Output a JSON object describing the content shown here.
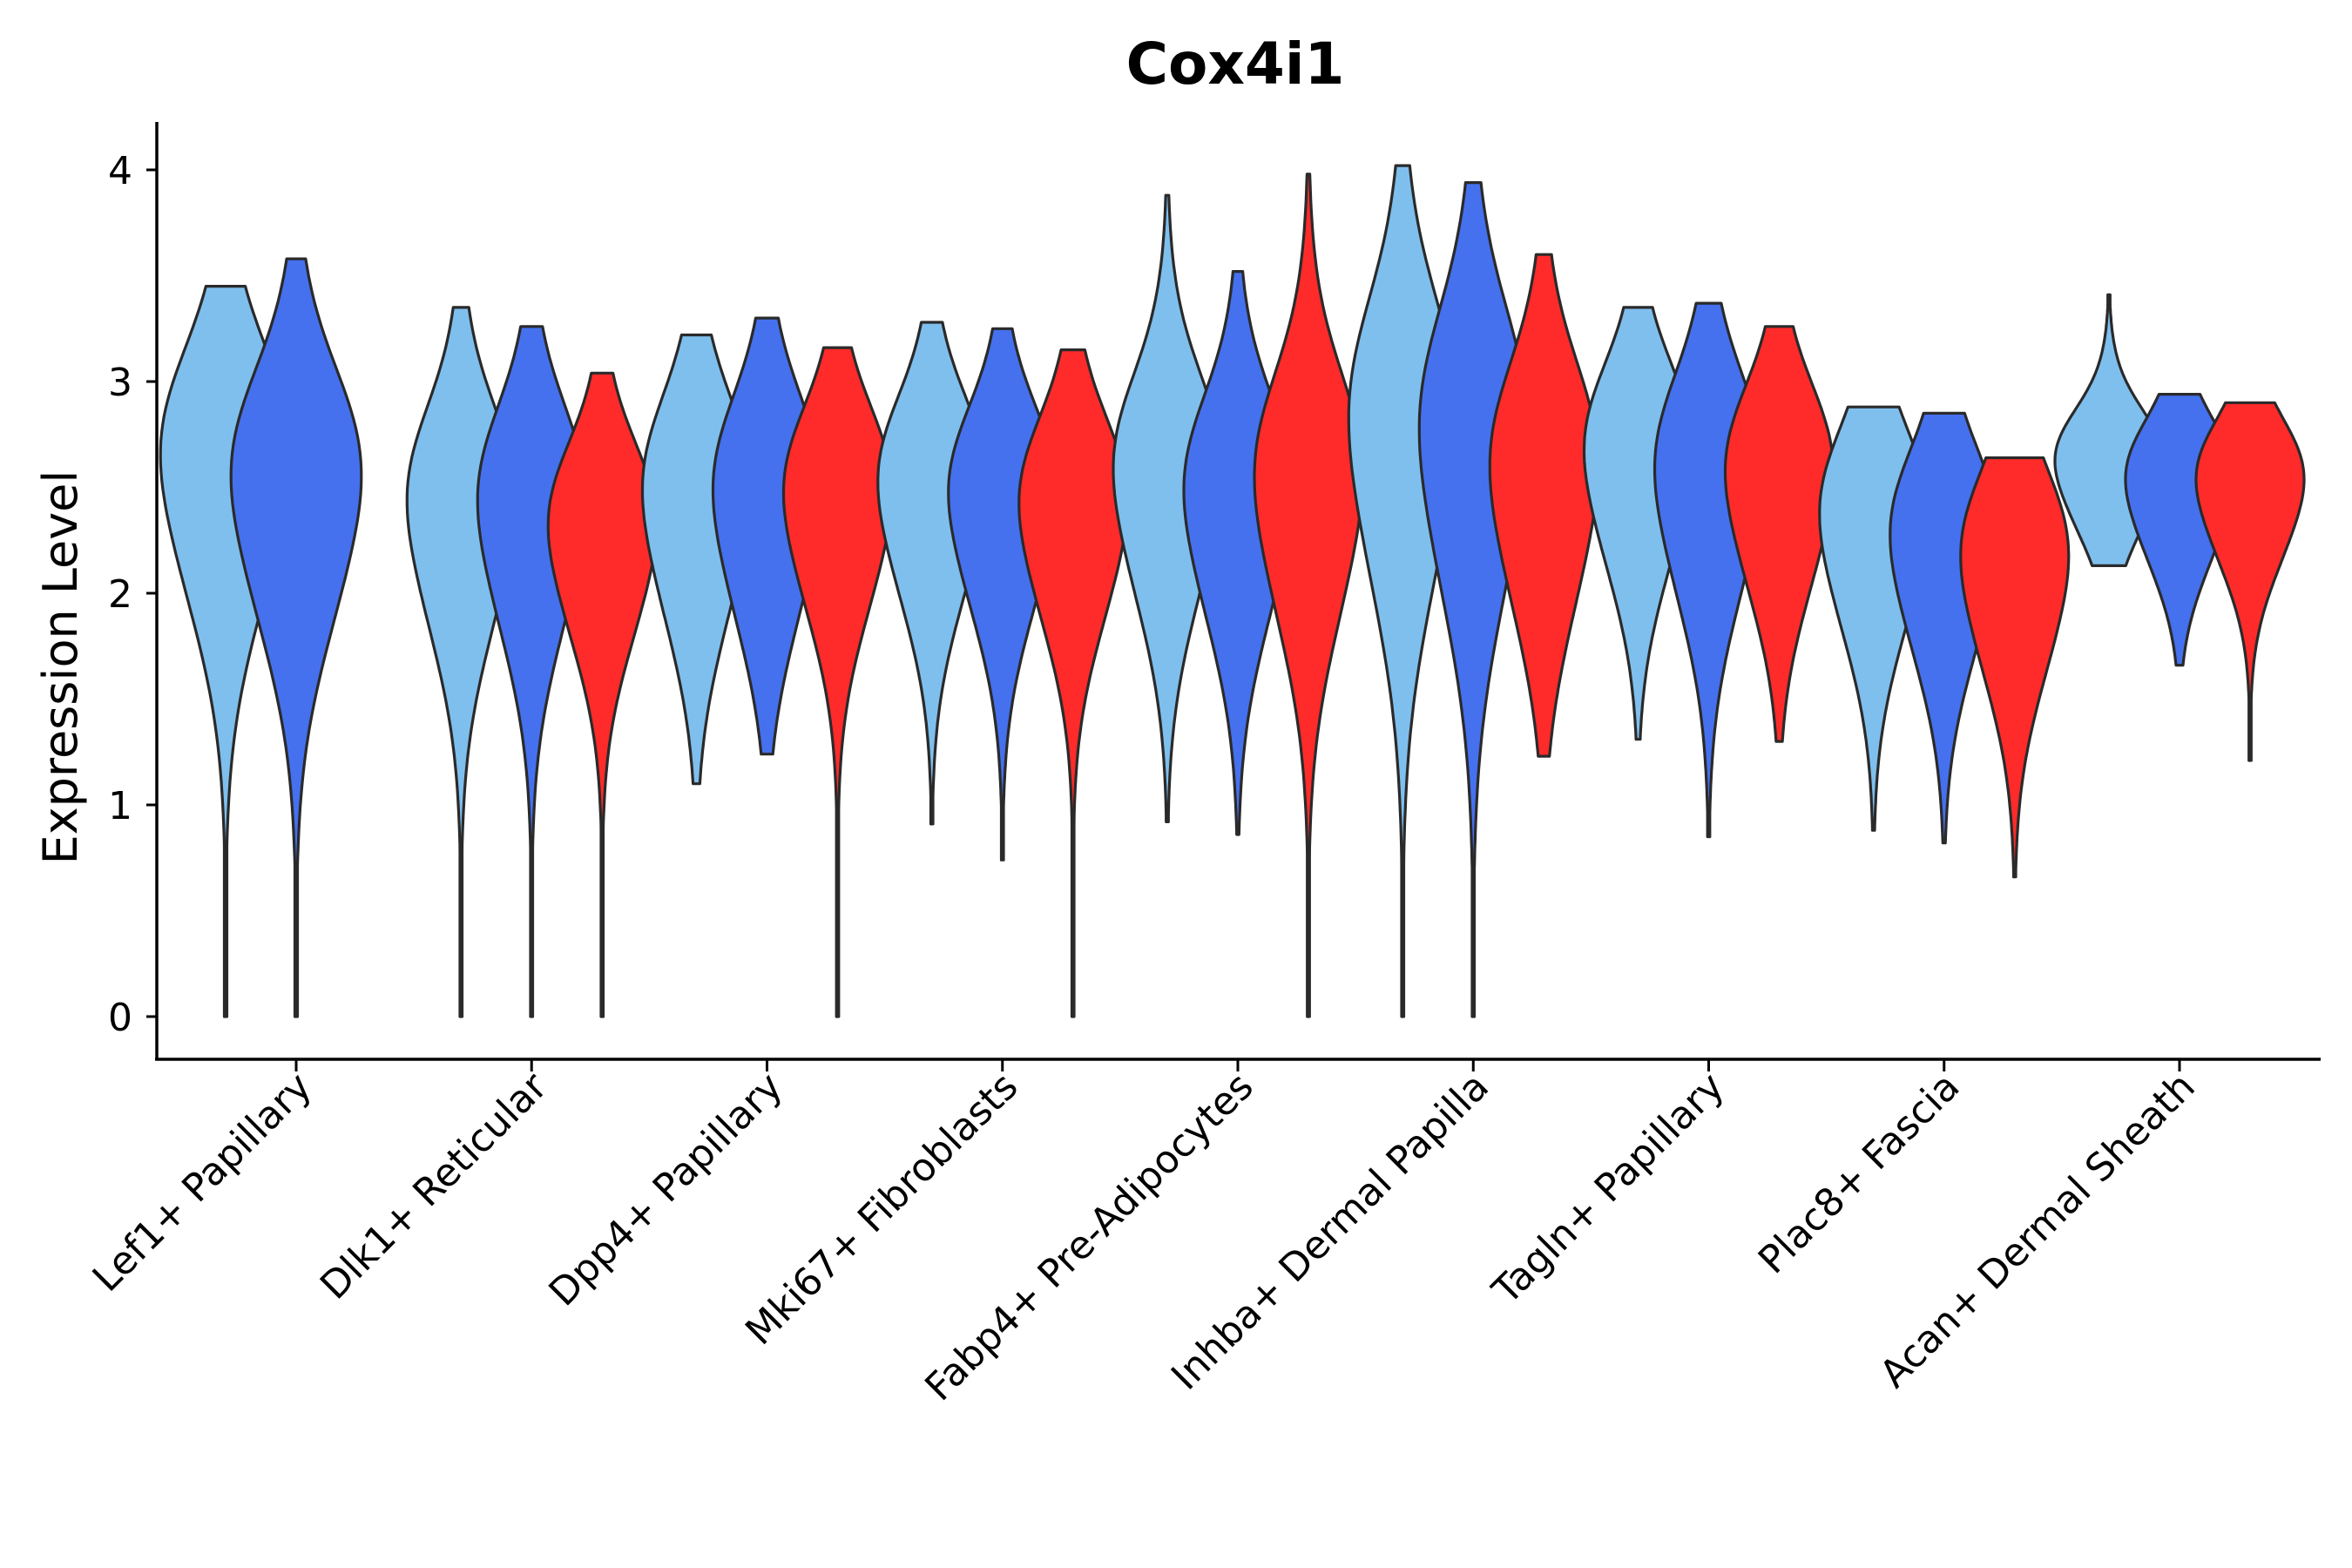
{
  "chart_data": {
    "type": "violin",
    "title": "Cox4i1",
    "xlabel": "",
    "ylabel": "Expression Level",
    "ylim": [
      -0.2,
      4.2
    ],
    "yticks": [
      0,
      1,
      2,
      3,
      4
    ],
    "grid": false,
    "legend": "none",
    "categories": [
      "Lef1+ Papillary",
      "Dlk1+ Reticular",
      "Dpp4+ Papillary",
      "Mki67+ Fibroblasts",
      "Fabp4+ Pre-Adipocytes",
      "Inhba+ Dermal Papilla",
      "Tagln+ Papillary",
      "Plac8+ Fascia",
      "Acan+ Dermal Sheath"
    ],
    "group_colors": [
      "#7fbfee",
      "#4571ef",
      "#ff2b2b"
    ],
    "violins": [
      {
        "category": 0,
        "group": 0,
        "min": 0.0,
        "max": 3.45,
        "mode": 2.5,
        "spread": 0.62,
        "width": 0.7
      },
      {
        "category": 0,
        "group": 1,
        "min": 0.0,
        "max": 3.58,
        "mode": 2.4,
        "spread": 0.62,
        "width": 0.7
      },
      {
        "category": 1,
        "group": 0,
        "min": 0.0,
        "max": 3.35,
        "mode": 2.3,
        "spread": 0.55,
        "width": 0.58
      },
      {
        "category": 1,
        "group": 1,
        "min": 0.0,
        "max": 3.26,
        "mode": 2.3,
        "spread": 0.55,
        "width": 0.58
      },
      {
        "category": 1,
        "group": 2,
        "min": 0.0,
        "max": 3.04,
        "mode": 2.2,
        "spread": 0.48,
        "width": 0.58
      },
      {
        "category": 2,
        "group": 0,
        "min": 1.1,
        "max": 3.22,
        "mode": 2.35,
        "spread": 0.55,
        "width": 0.58
      },
      {
        "category": 2,
        "group": 1,
        "min": 1.24,
        "max": 3.3,
        "mode": 2.35,
        "spread": 0.55,
        "width": 0.58
      },
      {
        "category": 2,
        "group": 2,
        "min": 0.0,
        "max": 3.16,
        "mode": 2.35,
        "spread": 0.5,
        "width": 0.58
      },
      {
        "category": 3,
        "group": 0,
        "min": 0.91,
        "max": 3.28,
        "mode": 2.4,
        "spread": 0.5,
        "width": 0.58
      },
      {
        "category": 3,
        "group": 1,
        "min": 0.74,
        "max": 3.25,
        "mode": 2.35,
        "spread": 0.5,
        "width": 0.58
      },
      {
        "category": 3,
        "group": 2,
        "min": 0.0,
        "max": 3.15,
        "mode": 2.3,
        "spread": 0.5,
        "width": 0.58
      },
      {
        "category": 4,
        "group": 0,
        "min": 0.92,
        "max": 3.88,
        "mode": 2.45,
        "spread": 0.55,
        "width": 0.58
      },
      {
        "category": 4,
        "group": 1,
        "min": 0.86,
        "max": 3.52,
        "mode": 2.35,
        "spread": 0.55,
        "width": 0.58
      },
      {
        "category": 4,
        "group": 2,
        "min": 0.0,
        "max": 3.98,
        "mode": 2.4,
        "spread": 0.6,
        "width": 0.58
      },
      {
        "category": 5,
        "group": 0,
        "min": 0.0,
        "max": 4.02,
        "mode": 2.65,
        "spread": 0.7,
        "width": 0.58
      },
      {
        "category": 5,
        "group": 1,
        "min": 0.0,
        "max": 3.94,
        "mode": 2.6,
        "spread": 0.7,
        "width": 0.58
      },
      {
        "category": 5,
        "group": 2,
        "min": 1.23,
        "max": 3.6,
        "mode": 2.45,
        "spread": 0.6,
        "width": 0.58
      },
      {
        "category": 6,
        "group": 0,
        "min": 1.31,
        "max": 3.35,
        "mode": 2.55,
        "spread": 0.5,
        "width": 0.58
      },
      {
        "category": 6,
        "group": 1,
        "min": 0.85,
        "max": 3.37,
        "mode": 2.45,
        "spread": 0.55,
        "width": 0.58
      },
      {
        "category": 6,
        "group": 2,
        "min": 1.3,
        "max": 3.26,
        "mode": 2.45,
        "spread": 0.5,
        "width": 0.58
      },
      {
        "category": 7,
        "group": 0,
        "min": 0.88,
        "max": 2.88,
        "mode": 2.25,
        "spread": 0.5,
        "width": 0.58
      },
      {
        "category": 7,
        "group": 1,
        "min": 0.82,
        "max": 2.85,
        "mode": 2.15,
        "spread": 0.5,
        "width": 0.58
      },
      {
        "category": 7,
        "group": 2,
        "min": 0.66,
        "max": 2.64,
        "mode": 2.05,
        "spread": 0.5,
        "width": 0.58
      },
      {
        "category": 8,
        "group": 0,
        "min": 2.13,
        "max": 3.41,
        "mode": 2.55,
        "spread": 0.3,
        "width": 0.58
      },
      {
        "category": 8,
        "group": 1,
        "min": 1.66,
        "max": 2.94,
        "mode": 2.45,
        "spread": 0.35,
        "width": 0.58
      },
      {
        "category": 8,
        "group": 2,
        "min": 1.21,
        "max": 2.9,
        "mode": 2.45,
        "spread": 0.35,
        "width": 0.58
      }
    ]
  }
}
